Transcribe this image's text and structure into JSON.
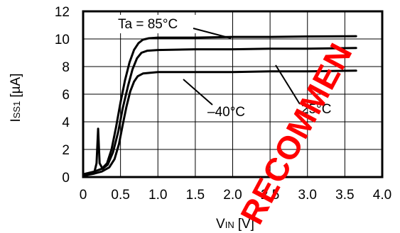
{
  "chart_data": {
    "type": "line",
    "xlabel": {
      "main": "V",
      "sub": "IN",
      "unit": "[V]"
    },
    "ylabel": {
      "main": "I",
      "sub": "SS1",
      "unit": "[µA]"
    },
    "xlim": [
      0,
      4.0
    ],
    "ylim": [
      0,
      12
    ],
    "xticks": [
      "0",
      "0.5",
      "1.0",
      "1.5",
      "2.0",
      "2.5",
      "3.0",
      "3.5",
      "4.0"
    ],
    "yticks": [
      "0",
      "2",
      "4",
      "6",
      "8",
      "10",
      "12"
    ],
    "grid": true,
    "series": [
      {
        "name": "Ta = 85°C",
        "label_text": "Ta = 85°C",
        "points": [
          [
            0.0,
            0.2
          ],
          [
            0.15,
            0.4
          ],
          [
            0.25,
            0.6
          ],
          [
            0.32,
            1.0
          ],
          [
            0.38,
            2.0
          ],
          [
            0.44,
            3.6
          ],
          [
            0.5,
            5.4
          ],
          [
            0.56,
            7.0
          ],
          [
            0.62,
            8.3
          ],
          [
            0.68,
            9.2
          ],
          [
            0.74,
            9.7
          ],
          [
            0.8,
            9.95
          ],
          [
            0.88,
            10.05
          ],
          [
            1.0,
            10.1
          ],
          [
            1.5,
            10.1
          ],
          [
            2.0,
            10.15
          ],
          [
            2.5,
            10.15
          ],
          [
            3.0,
            10.18
          ],
          [
            3.65,
            10.2
          ]
        ]
      },
      {
        "name": "25°C",
        "label_text": "25°C",
        "points": [
          [
            0.0,
            0.15
          ],
          [
            0.15,
            0.35
          ],
          [
            0.18,
            1.0
          ],
          [
            0.2,
            3.5
          ],
          [
            0.22,
            1.0
          ],
          [
            0.26,
            0.6
          ],
          [
            0.33,
            0.9
          ],
          [
            0.4,
            1.8
          ],
          [
            0.47,
            3.3
          ],
          [
            0.53,
            5.0
          ],
          [
            0.6,
            6.6
          ],
          [
            0.66,
            7.8
          ],
          [
            0.72,
            8.6
          ],
          [
            0.78,
            9.0
          ],
          [
            0.86,
            9.15
          ],
          [
            1.0,
            9.2
          ],
          [
            1.5,
            9.25
          ],
          [
            2.0,
            9.25
          ],
          [
            2.5,
            9.3
          ],
          [
            3.0,
            9.3
          ],
          [
            3.65,
            9.35
          ]
        ]
      },
      {
        "name": "–40°C",
        "label_text": "–40°C",
        "points": [
          [
            0.0,
            0.1
          ],
          [
            0.15,
            0.25
          ],
          [
            0.25,
            0.4
          ],
          [
            0.35,
            0.7
          ],
          [
            0.42,
            1.3
          ],
          [
            0.48,
            2.4
          ],
          [
            0.53,
            3.8
          ],
          [
            0.58,
            5.1
          ],
          [
            0.63,
            6.2
          ],
          [
            0.68,
            6.9
          ],
          [
            0.73,
            7.3
          ],
          [
            0.8,
            7.5
          ],
          [
            0.9,
            7.55
          ],
          [
            1.0,
            7.6
          ],
          [
            1.5,
            7.6
          ],
          [
            2.0,
            7.6
          ],
          [
            2.5,
            7.65
          ],
          [
            3.0,
            7.65
          ],
          [
            3.65,
            7.7
          ]
        ]
      }
    ]
  },
  "watermark": {
    "text": "RECOMMEN",
    "color": "#ff0000"
  }
}
